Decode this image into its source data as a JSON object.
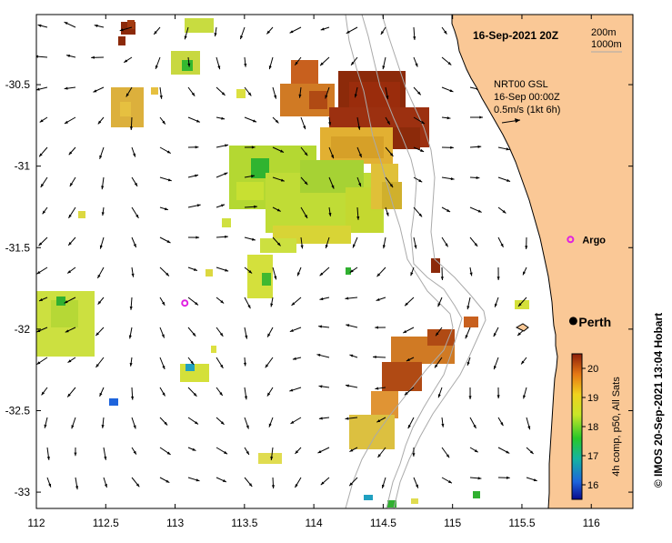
{
  "map": {
    "datetime_label": "16-Sep-2021 20Z",
    "isobath_legend": [
      "200m",
      "1000m"
    ],
    "current_info": [
      "NRT00 GSL",
      "16-Sep 00:00Z",
      "0.5m/s (1kt 6h)"
    ],
    "locations": [
      {
        "name": "Argo",
        "lon": 115.85,
        "lat": -31.45,
        "marker": "argo-float"
      },
      {
        "name": "",
        "lon": 113.07,
        "lat": -31.84,
        "marker": "argo-float"
      },
      {
        "name": "Perth",
        "lon": 115.87,
        "lat": -31.95,
        "marker": "city"
      }
    ],
    "credit": "© IMOS 20-Sep-2021 13:04 Hobart",
    "colorbar": {
      "label": "4h comp, p50, All Sats",
      "min": 15.5,
      "max": 20.5,
      "ticks": [
        "16",
        "17",
        "18",
        "19",
        "20"
      ]
    },
    "x_axis": {
      "ticks": [
        "112",
        "112.5",
        "113",
        "113.5",
        "114",
        "114.5",
        "115",
        "115.5",
        "116"
      ]
    },
    "y_axis": {
      "ticks": [
        "-30.5",
        "-31",
        "-31.5",
        "-32",
        "-32.5",
        "-33"
      ]
    },
    "extent": {
      "lon": [
        112,
        116.3
      ],
      "lat": [
        -33.1,
        -30.07
      ]
    },
    "colors": {
      "land": "#fac896",
      "coast": "#000000",
      "isobath": "#aaaaaa",
      "argo": "#e020e0"
    }
  }
}
